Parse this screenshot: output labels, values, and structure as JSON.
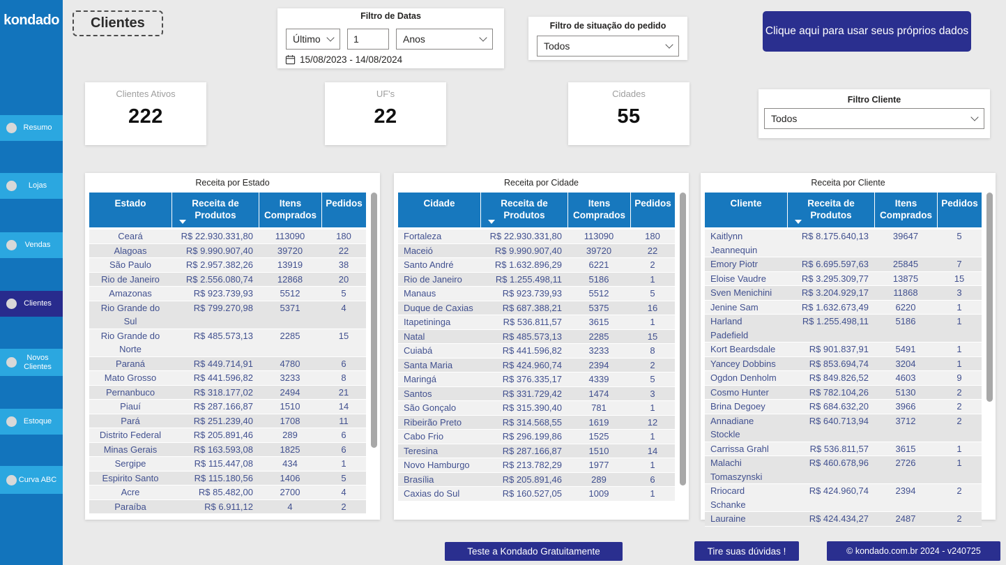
{
  "brand": {
    "logo_text": "kondado"
  },
  "page": {
    "title": "Clientes"
  },
  "sidebar": {
    "items": [
      {
        "label": "Resumo",
        "active": false
      },
      {
        "label": "Lojas",
        "active": false
      },
      {
        "label": "Vendas",
        "active": false
      },
      {
        "label": "Clientes",
        "active": true
      },
      {
        "label": "Novos Clientes",
        "active": false
      },
      {
        "label": "Estoque",
        "active": false
      },
      {
        "label": "Curva ABC",
        "active": false
      }
    ]
  },
  "filters": {
    "date": {
      "title": "Filtro de Datas",
      "period_type": "Último",
      "period_value": "1",
      "period_unit": "Anos",
      "range": "15/08/2023 - 14/08/2024"
    },
    "order_status": {
      "title": "Filtro de situação do pedido",
      "value": "Todos"
    },
    "client": {
      "title": "Filtro Cliente",
      "value": "Todos"
    }
  },
  "cta": {
    "label": "Clique aqui para usar seus próprios dados"
  },
  "kpis": [
    {
      "label": "Clientes Ativos",
      "value": "222"
    },
    {
      "label": "UF's",
      "value": "22"
    },
    {
      "label": "Cidades",
      "value": "55"
    }
  ],
  "tables": [
    {
      "title": "Receita por Estado",
      "columns": [
        "Estado",
        "Receita de Produtos",
        "Itens Comprados",
        "Pedidos"
      ],
      "sorted_column": 1,
      "aligns": [
        "center",
        "right",
        "center",
        "center"
      ],
      "rows": [
        [
          "Ceará",
          "R$ 22.930.331,80",
          "113090",
          "180"
        ],
        [
          "Alagoas",
          "R$ 9.990.907,40",
          "39720",
          "22"
        ],
        [
          "São Paulo",
          "R$ 2.957.382,26",
          "13919",
          "38"
        ],
        [
          "Rio de Janeiro",
          "R$ 2.556.080,74",
          "12868",
          "20"
        ],
        [
          "Amazonas",
          "R$ 923.739,93",
          "5512",
          "5"
        ],
        [
          "Rio Grande do Sul",
          "R$ 799.270,98",
          "5371",
          "4"
        ],
        [
          "Rio Grande do Norte",
          "R$ 485.573,13",
          "2285",
          "15"
        ],
        [
          "Paraná",
          "R$ 449.714,91",
          "4780",
          "6"
        ],
        [
          "Mato Grosso",
          "R$ 441.596,82",
          "3233",
          "8"
        ],
        [
          "Pernanbuco",
          "R$ 318.177,02",
          "2494",
          "21"
        ],
        [
          "Piauí",
          "R$ 287.166,87",
          "1510",
          "14"
        ],
        [
          "Pará",
          "R$ 251.239,40",
          "1708",
          "11"
        ],
        [
          "Distrito Federal",
          "R$ 205.891,46",
          "289",
          "6"
        ],
        [
          "Minas Gerais",
          "R$ 163.593,08",
          "1825",
          "6"
        ],
        [
          "Sergipe",
          "R$ 115.447,08",
          "434",
          "1"
        ],
        [
          "Espirito Santo",
          "R$ 115.180,56",
          "1406",
          "5"
        ],
        [
          "Acre",
          "R$ 85.482,00",
          "2700",
          "4"
        ],
        [
          "Paraíba",
          "R$ 6.911,12",
          "4",
          "2"
        ]
      ]
    },
    {
      "title": "Receita por Cidade",
      "columns": [
        "Cidade",
        "Receita de Produtos",
        "Itens Comprados",
        "Pedidos"
      ],
      "sorted_column": 1,
      "aligns": [
        "left",
        "right",
        "center",
        "center"
      ],
      "rows": [
        [
          "Fortaleza",
          "R$ 22.930.331,80",
          "113090",
          "180"
        ],
        [
          "Maceió",
          "R$ 9.990.907,40",
          "39720",
          "22"
        ],
        [
          "Santo André",
          "R$ 1.632.896,29",
          "6221",
          "2"
        ],
        [
          "Rio de Janeiro",
          "R$ 1.255.498,11",
          "5186",
          "1"
        ],
        [
          "Manaus",
          "R$ 923.739,93",
          "5512",
          "5"
        ],
        [
          "Duque de Caxias",
          "R$ 687.388,21",
          "5375",
          "16"
        ],
        [
          "Itapetininga",
          "R$ 536.811,57",
          "3615",
          "1"
        ],
        [
          "Natal",
          "R$ 485.573,13",
          "2285",
          "15"
        ],
        [
          "Cuiabá",
          "R$ 441.596,82",
          "3233",
          "8"
        ],
        [
          "Santa Maria",
          "R$ 424.960,74",
          "2394",
          "2"
        ],
        [
          "Maringá",
          "R$ 376.335,17",
          "4339",
          "5"
        ],
        [
          "Santos",
          "R$ 331.729,42",
          "1474",
          "3"
        ],
        [
          "São Gonçalo",
          "R$ 315.390,40",
          "781",
          "1"
        ],
        [
          "Ribeirão Preto",
          "R$ 314.568,55",
          "1619",
          "12"
        ],
        [
          "Cabo Frio",
          "R$ 296.199,86",
          "1525",
          "1"
        ],
        [
          "Teresina",
          "R$ 287.166,87",
          "1510",
          "14"
        ],
        [
          "Novo Hamburgo",
          "R$ 213.782,29",
          "1977",
          "1"
        ],
        [
          "Brasília",
          "R$ 205.891,46",
          "289",
          "6"
        ],
        [
          "Caxias do Sul",
          "R$ 160.527,05",
          "1009",
          "1"
        ]
      ]
    },
    {
      "title": "Receita por Cliente",
      "columns": [
        "Cliente",
        "Receita de Produtos",
        "Itens Comprados",
        "Pedidos"
      ],
      "sorted_column": 1,
      "aligns": [
        "left",
        "right",
        "center",
        "center"
      ],
      "rows": [
        [
          "Kaitlynn Jeannequin",
          "R$ 8.175.640,13",
          "39647",
          "5"
        ],
        [
          "Emory Piotr",
          "R$ 6.695.597,63",
          "25845",
          "7"
        ],
        [
          "Eloise Vaudre",
          "R$ 3.295.309,77",
          "13875",
          "15"
        ],
        [
          "Sven Menichini",
          "R$ 3.204.929,17",
          "11868",
          "3"
        ],
        [
          "Jenine Sam",
          "R$ 1.632.673,49",
          "6220",
          "1"
        ],
        [
          "Harland Padefield",
          "R$ 1.255.498,11",
          "5186",
          "1"
        ],
        [
          "Kort Beardsdale",
          "R$ 901.837,91",
          "5491",
          "1"
        ],
        [
          "Yancey Dobbins",
          "R$ 853.694,74",
          "3204",
          "1"
        ],
        [
          "Ogdon Denholm",
          "R$ 849.826,52",
          "4603",
          "9"
        ],
        [
          "Cosmo Hunter",
          "R$ 782.104,26",
          "5130",
          "2"
        ],
        [
          "Brina Degoey",
          "R$ 684.632,20",
          "3966",
          "2"
        ],
        [
          "Annadiane Stockle",
          "R$ 640.713,94",
          "3712",
          "2"
        ],
        [
          "Carrissa Grahl",
          "R$ 536.811,57",
          "3615",
          "1"
        ],
        [
          "Malachi Tomaszynski",
          "R$ 460.678,96",
          "2726",
          "1"
        ],
        [
          "Rriocard Schanke",
          "R$ 424.960,74",
          "2394",
          "2"
        ],
        [
          "Lauraine",
          "R$ 424.434,27",
          "2487",
          "2"
        ]
      ]
    }
  ],
  "footer": {
    "trial_label": "Teste a Kondado Gratuitamente",
    "help_label": "Tire suas dúvidas !",
    "copyright": "© kondado.com.br 2024 - v240725"
  },
  "colors": {
    "sidebar_bg": "#1274BC",
    "sidebar_item": "#2BA7E0",
    "sidebar_active": "#282B8D",
    "table_header": "#1778BE",
    "navy_button": "#2A2F8F",
    "cell_text": "#41508F"
  }
}
